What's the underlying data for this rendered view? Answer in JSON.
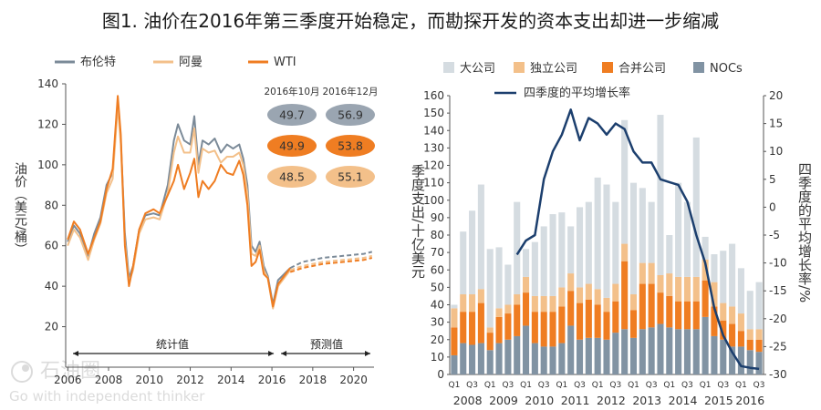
{
  "title": "图1. 油价在2016年第三季度开始稳定，而勘探开发的资本支出却进一步缩减",
  "watermark": {
    "brand": "石油圈",
    "tagline": "Go with independent thinker"
  },
  "chart_data": [
    {
      "type": "line",
      "ylabel": "油价（美元/桶）",
      "xlabel": "",
      "ylim": [
        0,
        140
      ],
      "yticks": [
        20,
        40,
        60,
        80,
        100,
        120,
        140
      ],
      "xlim": [
        2005.9,
        2021.0
      ],
      "xticks": [
        "2006",
        "2008",
        "2010",
        "2012",
        "2014",
        "2016",
        "2018",
        "2020"
      ],
      "grid": false,
      "legend": [
        "布伦特",
        "阿曼",
        "WTI"
      ],
      "annotations": {
        "historical": "统计值",
        "forecast": "预测值"
      },
      "forecast_table": {
        "headers": [
          "2016年10月",
          "2016年12月"
        ],
        "rows": [
          {
            "series": "布伦特",
            "values": [
              "49.7",
              "56.9"
            ],
            "color": "#9aa5b1",
            "text_color": "#333333"
          },
          {
            "series": "WTI",
            "values": [
              "49.9",
              "53.8"
            ],
            "color": "#ef7d22",
            "text_color": "#333333"
          },
          {
            "series": "阿曼",
            "values": [
              "48.5",
              "55.1"
            ],
            "color": "#f3c08a",
            "text_color": "#333333"
          }
        ]
      },
      "series": [
        {
          "name": "布伦特",
          "color": "#7b8a98",
          "x": [
            2006.0,
            2006.3,
            2006.6,
            2007.0,
            2007.3,
            2007.6,
            2007.9,
            2008.2,
            2008.45,
            2008.6,
            2008.8,
            2009.0,
            2009.2,
            2009.5,
            2009.8,
            2010.2,
            2010.5,
            2010.9,
            2011.2,
            2011.4,
            2011.7,
            2012.0,
            2012.2,
            2012.4,
            2012.6,
            2012.9,
            2013.2,
            2013.5,
            2013.8,
            2014.1,
            2014.4,
            2014.6,
            2014.8,
            2015.0,
            2015.2,
            2015.4,
            2015.6,
            2015.8,
            2016.05,
            2016.3,
            2016.6,
            2016.9
          ],
          "y": [
            62,
            70,
            66,
            55,
            66,
            74,
            90,
            96,
            132,
            112,
            66,
            44,
            50,
            68,
            75,
            76,
            75,
            90,
            112,
            120,
            112,
            110,
            124,
            100,
            112,
            110,
            113,
            106,
            110,
            108,
            110,
            103,
            90,
            60,
            57,
            62,
            50,
            45,
            31,
            43,
            46,
            49
          ]
        },
        {
          "name": "阿曼",
          "color": "#f3c08a",
          "x": [
            2006.0,
            2006.3,
            2006.6,
            2007.0,
            2007.3,
            2007.6,
            2007.9,
            2008.2,
            2008.45,
            2008.6,
            2008.8,
            2009.0,
            2009.2,
            2009.5,
            2009.8,
            2010.2,
            2010.5,
            2010.9,
            2011.2,
            2011.4,
            2011.7,
            2012.0,
            2012.2,
            2012.4,
            2012.6,
            2012.9,
            2013.2,
            2013.5,
            2013.8,
            2014.1,
            2014.4,
            2014.6,
            2014.8,
            2015.0,
            2015.2,
            2015.4,
            2015.6,
            2015.8,
            2016.05,
            2016.3,
            2016.6,
            2016.9
          ],
          "y": [
            60,
            68,
            64,
            53,
            63,
            71,
            86,
            93,
            129,
            110,
            62,
            42,
            48,
            66,
            73,
            74,
            73,
            86,
            106,
            114,
            106,
            106,
            118,
            96,
            108,
            106,
            107,
            101,
            104,
            104,
            106,
            100,
            86,
            56,
            55,
            60,
            48,
            44,
            29,
            40,
            44,
            48
          ]
        },
        {
          "name": "WTI",
          "color": "#ef7d22",
          "x": [
            2006.0,
            2006.3,
            2006.6,
            2007.0,
            2007.3,
            2007.6,
            2007.9,
            2008.2,
            2008.45,
            2008.6,
            2008.8,
            2009.0,
            2009.2,
            2009.5,
            2009.8,
            2010.2,
            2010.5,
            2010.9,
            2011.2,
            2011.4,
            2011.7,
            2012.0,
            2012.2,
            2012.4,
            2012.6,
            2012.9,
            2013.2,
            2013.5,
            2013.8,
            2014.1,
            2014.4,
            2014.6,
            2014.8,
            2015.0,
            2015.2,
            2015.4,
            2015.6,
            2015.8,
            2016.05,
            2016.3,
            2016.6,
            2016.9
          ],
          "y": [
            63,
            72,
            68,
            56,
            64,
            72,
            88,
            98,
            134,
            115,
            60,
            40,
            50,
            68,
            76,
            78,
            76,
            85,
            92,
            100,
            88,
            96,
            103,
            84,
            92,
            88,
            92,
            100,
            96,
            95,
            102,
            95,
            80,
            50,
            52,
            58,
            46,
            44,
            30,
            41,
            45,
            49
          ]
        }
      ],
      "forecast_series": [
        {
          "name": "布伦特",
          "color": "#7b8a98",
          "x": [
            2016.9,
            2017.5,
            2018.5,
            2019.5,
            2020.5,
            2020.9
          ],
          "y": [
            49,
            52,
            54,
            55,
            56,
            57
          ]
        },
        {
          "name": "阿曼",
          "color": "#f3c08a",
          "x": [
            2016.9,
            2017.5,
            2018.5,
            2019.5,
            2020.5,
            2020.9
          ],
          "y": [
            48,
            50,
            52,
            53,
            54,
            55
          ]
        },
        {
          "name": "WTI",
          "color": "#ef7d22",
          "x": [
            2016.9,
            2017.5,
            2018.5,
            2019.5,
            2020.5,
            2020.9
          ],
          "y": [
            47,
            49,
            51,
            52,
            53,
            54
          ]
        }
      ]
    },
    {
      "type": "bar",
      "stacked": true,
      "ylabel": "季度支出/十亿美元",
      "y2label": "四季度的平均增长率/%",
      "ylim": [
        0,
        160
      ],
      "yticks": [
        0,
        10,
        20,
        30,
        40,
        50,
        60,
        70,
        80,
        90,
        100,
        110,
        120,
        130,
        140,
        150,
        160
      ],
      "y2lim": [
        -30,
        20
      ],
      "y2ticks": [
        -30,
        -25,
        -20,
        -15,
        -10,
        -5,
        0,
        5,
        10,
        15,
        20
      ],
      "quarter_labels": [
        "Q1",
        "Q3"
      ],
      "years": [
        "2008",
        "2009",
        "2010",
        "2011",
        "2012",
        "2013",
        "2014",
        "2015",
        "2016"
      ],
      "categories": [
        "2008Q1",
        "2008Q2",
        "2008Q3",
        "2008Q4",
        "2009Q1",
        "2009Q2",
        "2009Q3",
        "2009Q4",
        "2010Q1",
        "2010Q2",
        "2010Q3",
        "2010Q4",
        "2011Q1",
        "2011Q2",
        "2011Q3",
        "2011Q4",
        "2012Q1",
        "2012Q2",
        "2012Q3",
        "2012Q4",
        "2013Q1",
        "2013Q2",
        "2013Q3",
        "2013Q4",
        "2014Q1",
        "2014Q2",
        "2014Q3",
        "2014Q4",
        "2015Q1",
        "2015Q2",
        "2015Q3",
        "2015Q4",
        "2016Q1",
        "2016Q2",
        "2016Q3"
      ],
      "series": [
        {
          "name": "NOCs",
          "color": "#8193a3",
          "values": [
            11,
            18,
            17,
            18,
            14,
            18,
            20,
            22,
            28,
            18,
            16,
            16,
            18,
            28,
            20,
            21,
            21,
            20,
            24,
            26,
            21,
            26,
            27,
            29,
            27,
            26,
            26,
            26,
            33,
            22,
            20,
            16,
            16,
            14,
            13
          ]
        },
        {
          "name": "合并公司",
          "color": "#ef7d22",
          "values": [
            16,
            18,
            19,
            23,
            10,
            15,
            15,
            18,
            19,
            18,
            20,
            20,
            21,
            20,
            21,
            22,
            19,
            16,
            18,
            39,
            16,
            26,
            25,
            18,
            18,
            16,
            16,
            16,
            21,
            17,
            11,
            13,
            9,
            6,
            7
          ]
        },
        {
          "name": "独立公司",
          "color": "#f3c08a",
          "values": [
            11,
            10,
            10,
            8,
            3,
            5,
            5,
            6,
            9,
            9,
            9,
            9,
            11,
            10,
            9,
            9,
            9,
            8,
            10,
            10,
            9,
            12,
            12,
            10,
            13,
            14,
            14,
            14,
            12,
            14,
            10,
            10,
            10,
            6,
            6
          ]
        },
        {
          "name": "大公司",
          "color": "#d5dce1",
          "values": [
            2,
            36,
            48,
            60,
            45,
            35,
            23,
            53,
            16,
            31,
            40,
            47,
            43,
            27,
            46,
            47,
            64,
            65,
            47,
            71,
            64,
            43,
            35,
            92,
            22,
            54,
            43,
            80,
            13,
            16,
            30,
            36,
            26,
            22,
            27
          ]
        }
      ],
      "line_series": {
        "name": "四季度的平均增长率",
        "color": "#1c3f6e",
        "values": [
          null,
          null,
          null,
          null,
          null,
          null,
          null,
          -8.5,
          -6,
          -5,
          5,
          10,
          13,
          17.5,
          12,
          16,
          15,
          13,
          15,
          14,
          10,
          8,
          8,
          5,
          4.5,
          4,
          1,
          -5,
          -10,
          -18,
          -23,
          -26,
          -28.5,
          -28.8,
          -29
        ]
      }
    }
  ]
}
